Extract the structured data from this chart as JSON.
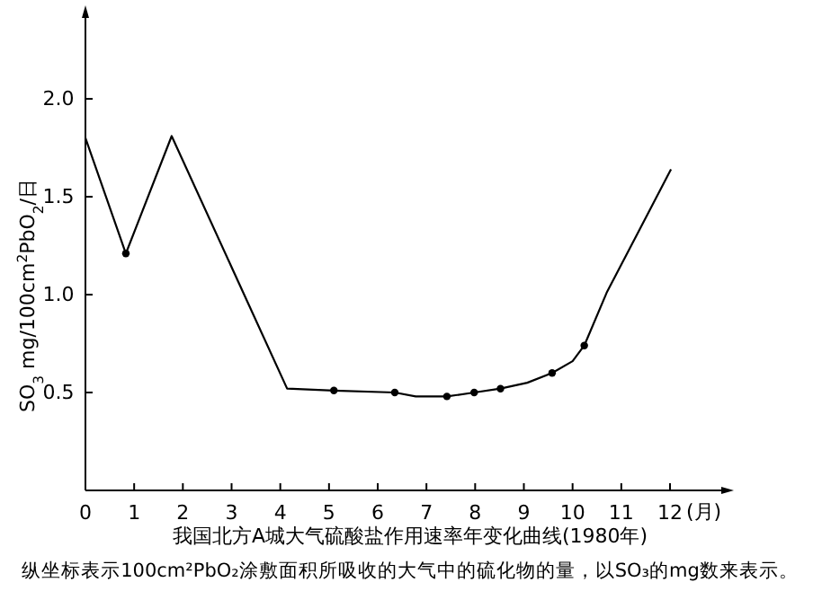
{
  "chart_data": {
    "type": "line",
    "title": "我国北方A城大气硫酸盐作用速率年变化曲线(1980年)",
    "xlabel": "(月)",
    "ylabel": "SO$_{3}$ mg/100cm$^{2}$PbO$_{2}$/日",
    "annotations": [
      "纵坐标表示100cm²PbO₂涂敷面积所吸收的大气中的硫化物的量，以SO₃的mg数来表示。"
    ],
    "xlim": [
      0,
      13.2
    ],
    "ylim": [
      0,
      2.45
    ],
    "xticks": [
      0,
      1,
      2,
      3,
      4,
      5,
      6,
      7,
      8,
      9,
      10,
      11,
      12
    ],
    "yticks": [
      {
        "value": 0.5,
        "label": "0.5"
      },
      {
        "value": 1,
        "label": "1.0"
      },
      {
        "value": 1.5,
        "label": "1.5"
      },
      {
        "value": 2,
        "label": "2.0"
      }
    ],
    "grid": false,
    "series": [
      {
        "color": "#000000",
        "marker": "none",
        "line_style": "solid",
        "x": [
          0,
          0.83,
          1.77,
          4.14,
          5.1,
          6.35,
          6.78,
          7.42,
          7.98,
          8.52,
          9.07,
          9.58,
          10.0,
          10.24,
          10.7,
          12.02
        ],
        "values": [
          1.8,
          1.21,
          1.81,
          0.52,
          0.51,
          0.5,
          0.48,
          0.48,
          0.5,
          0.52,
          0.55,
          0.6,
          0.66,
          0.74,
          1.01,
          1.64
        ]
      },
      {
        "type": "scatter",
        "color": "#000000",
        "marker": "circle",
        "x": [
          0.83,
          5.1,
          6.35,
          7.42,
          7.98,
          8.52,
          9.58,
          10.24
        ],
        "values": [
          1.21,
          0.51,
          0.5,
          0.48,
          0.5,
          0.52,
          0.6,
          0.74
        ]
      }
    ]
  }
}
